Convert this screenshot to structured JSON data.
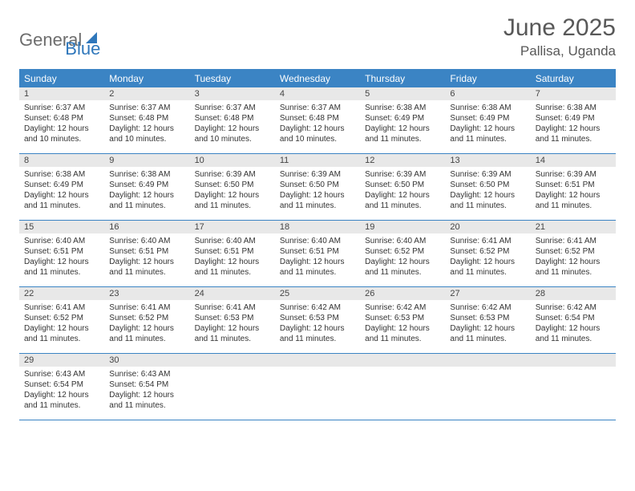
{
  "logo": {
    "text1": "General",
    "text2": "Blue"
  },
  "header": {
    "month": "June 2025",
    "location": "Pallisa, Uganda"
  },
  "colors": {
    "header_bar": "#3b84c4",
    "daynum_bg": "#e8e8e8",
    "logo_gray": "#6d6d6d",
    "logo_blue": "#2f77bb",
    "text": "#333333"
  },
  "dow": [
    "Sunday",
    "Monday",
    "Tuesday",
    "Wednesday",
    "Thursday",
    "Friday",
    "Saturday"
  ],
  "weeks": [
    [
      {
        "n": "1",
        "sunrise": "Sunrise: 6:37 AM",
        "sunset": "Sunset: 6:48 PM",
        "day": "Daylight: 12 hours and 10 minutes."
      },
      {
        "n": "2",
        "sunrise": "Sunrise: 6:37 AM",
        "sunset": "Sunset: 6:48 PM",
        "day": "Daylight: 12 hours and 10 minutes."
      },
      {
        "n": "3",
        "sunrise": "Sunrise: 6:37 AM",
        "sunset": "Sunset: 6:48 PM",
        "day": "Daylight: 12 hours and 10 minutes."
      },
      {
        "n": "4",
        "sunrise": "Sunrise: 6:37 AM",
        "sunset": "Sunset: 6:48 PM",
        "day": "Daylight: 12 hours and 10 minutes."
      },
      {
        "n": "5",
        "sunrise": "Sunrise: 6:38 AM",
        "sunset": "Sunset: 6:49 PM",
        "day": "Daylight: 12 hours and 11 minutes."
      },
      {
        "n": "6",
        "sunrise": "Sunrise: 6:38 AM",
        "sunset": "Sunset: 6:49 PM",
        "day": "Daylight: 12 hours and 11 minutes."
      },
      {
        "n": "7",
        "sunrise": "Sunrise: 6:38 AM",
        "sunset": "Sunset: 6:49 PM",
        "day": "Daylight: 12 hours and 11 minutes."
      }
    ],
    [
      {
        "n": "8",
        "sunrise": "Sunrise: 6:38 AM",
        "sunset": "Sunset: 6:49 PM",
        "day": "Daylight: 12 hours and 11 minutes."
      },
      {
        "n": "9",
        "sunrise": "Sunrise: 6:38 AM",
        "sunset": "Sunset: 6:49 PM",
        "day": "Daylight: 12 hours and 11 minutes."
      },
      {
        "n": "10",
        "sunrise": "Sunrise: 6:39 AM",
        "sunset": "Sunset: 6:50 PM",
        "day": "Daylight: 12 hours and 11 minutes."
      },
      {
        "n": "11",
        "sunrise": "Sunrise: 6:39 AM",
        "sunset": "Sunset: 6:50 PM",
        "day": "Daylight: 12 hours and 11 minutes."
      },
      {
        "n": "12",
        "sunrise": "Sunrise: 6:39 AM",
        "sunset": "Sunset: 6:50 PM",
        "day": "Daylight: 12 hours and 11 minutes."
      },
      {
        "n": "13",
        "sunrise": "Sunrise: 6:39 AM",
        "sunset": "Sunset: 6:50 PM",
        "day": "Daylight: 12 hours and 11 minutes."
      },
      {
        "n": "14",
        "sunrise": "Sunrise: 6:39 AM",
        "sunset": "Sunset: 6:51 PM",
        "day": "Daylight: 12 hours and 11 minutes."
      }
    ],
    [
      {
        "n": "15",
        "sunrise": "Sunrise: 6:40 AM",
        "sunset": "Sunset: 6:51 PM",
        "day": "Daylight: 12 hours and 11 minutes."
      },
      {
        "n": "16",
        "sunrise": "Sunrise: 6:40 AM",
        "sunset": "Sunset: 6:51 PM",
        "day": "Daylight: 12 hours and 11 minutes."
      },
      {
        "n": "17",
        "sunrise": "Sunrise: 6:40 AM",
        "sunset": "Sunset: 6:51 PM",
        "day": "Daylight: 12 hours and 11 minutes."
      },
      {
        "n": "18",
        "sunrise": "Sunrise: 6:40 AM",
        "sunset": "Sunset: 6:51 PM",
        "day": "Daylight: 12 hours and 11 minutes."
      },
      {
        "n": "19",
        "sunrise": "Sunrise: 6:40 AM",
        "sunset": "Sunset: 6:52 PM",
        "day": "Daylight: 12 hours and 11 minutes."
      },
      {
        "n": "20",
        "sunrise": "Sunrise: 6:41 AM",
        "sunset": "Sunset: 6:52 PM",
        "day": "Daylight: 12 hours and 11 minutes."
      },
      {
        "n": "21",
        "sunrise": "Sunrise: 6:41 AM",
        "sunset": "Sunset: 6:52 PM",
        "day": "Daylight: 12 hours and 11 minutes."
      }
    ],
    [
      {
        "n": "22",
        "sunrise": "Sunrise: 6:41 AM",
        "sunset": "Sunset: 6:52 PM",
        "day": "Daylight: 12 hours and 11 minutes."
      },
      {
        "n": "23",
        "sunrise": "Sunrise: 6:41 AM",
        "sunset": "Sunset: 6:52 PM",
        "day": "Daylight: 12 hours and 11 minutes."
      },
      {
        "n": "24",
        "sunrise": "Sunrise: 6:41 AM",
        "sunset": "Sunset: 6:53 PM",
        "day": "Daylight: 12 hours and 11 minutes."
      },
      {
        "n": "25",
        "sunrise": "Sunrise: 6:42 AM",
        "sunset": "Sunset: 6:53 PM",
        "day": "Daylight: 12 hours and 11 minutes."
      },
      {
        "n": "26",
        "sunrise": "Sunrise: 6:42 AM",
        "sunset": "Sunset: 6:53 PM",
        "day": "Daylight: 12 hours and 11 minutes."
      },
      {
        "n": "27",
        "sunrise": "Sunrise: 6:42 AM",
        "sunset": "Sunset: 6:53 PM",
        "day": "Daylight: 12 hours and 11 minutes."
      },
      {
        "n": "28",
        "sunrise": "Sunrise: 6:42 AM",
        "sunset": "Sunset: 6:54 PM",
        "day": "Daylight: 12 hours and 11 minutes."
      }
    ],
    [
      {
        "n": "29",
        "sunrise": "Sunrise: 6:43 AM",
        "sunset": "Sunset: 6:54 PM",
        "day": "Daylight: 12 hours and 11 minutes."
      },
      {
        "n": "30",
        "sunrise": "Sunrise: 6:43 AM",
        "sunset": "Sunset: 6:54 PM",
        "day": "Daylight: 12 hours and 11 minutes."
      },
      null,
      null,
      null,
      null,
      null
    ]
  ]
}
